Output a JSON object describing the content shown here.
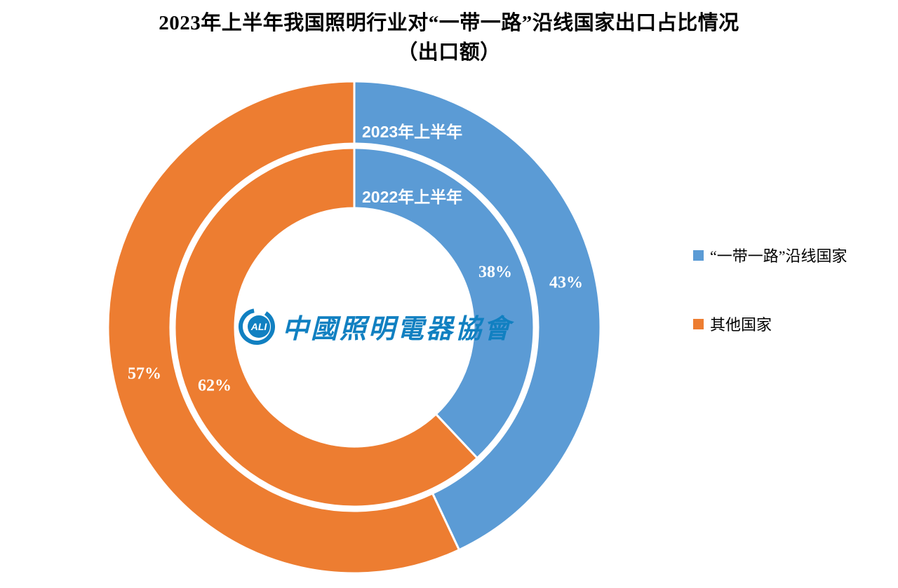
{
  "chart_data": {
    "type": "pie",
    "subtype": "nested-donut",
    "title": "2023年上半年我国照明行业对“一带一路”沿线国家出口占比情况",
    "subtitle": "（出口额）",
    "categories": [
      "“一带一路”沿线国家",
      "其他国家"
    ],
    "colors": [
      "#5B9BD5",
      "#ED7D31"
    ],
    "rings": [
      {
        "name": "2023年上半年",
        "position": "outer",
        "values": [
          43,
          57
        ],
        "labels": [
          "43%",
          "57%"
        ]
      },
      {
        "name": "2022年上半年",
        "position": "inner",
        "values": [
          38,
          62
        ],
        "labels": [
          "38%",
          "62%"
        ]
      }
    ],
    "start_angle_deg": 0,
    "direction": "clockwise",
    "legend_position": "right",
    "data_label_color": "#FFFFFF",
    "slice_border_color": "#FFFFFF"
  },
  "watermark": {
    "logo_abbr": "ALI",
    "org_name": "中國照明電器協會",
    "color": "#1180C1"
  }
}
